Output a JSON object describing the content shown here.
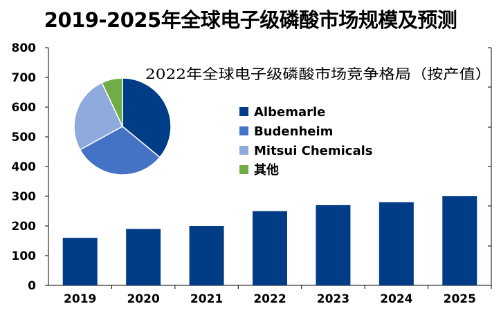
{
  "title": "2019-2025年全球电子级磷酸市场规模及预测",
  "chart_data": [
    {
      "type": "bar",
      "categories": [
        "2019",
        "2020",
        "2021",
        "2022",
        "2023",
        "2024",
        "2025"
      ],
      "values": [
        160,
        190,
        200,
        250,
        270,
        280,
        300
      ],
      "ylim": [
        0,
        800
      ],
      "yticks": [
        "0",
        "100",
        "200",
        "300",
        "400",
        "500",
        "600",
        "700",
        "800"
      ],
      "grid": false,
      "color": "#003D86"
    },
    {
      "type": "pie",
      "title": "2022年全球电子级磷酸市场竞争格局（按产值）",
      "labels": [
        "Albemarle",
        "Budenheim",
        "Mitsui Chemicals",
        "其他"
      ],
      "values": [
        36,
        31,
        26,
        7
      ],
      "colors": [
        "#003D86",
        "#4472C4",
        "#8FAADC",
        "#70AD47"
      ],
      "legend": "right"
    }
  ]
}
